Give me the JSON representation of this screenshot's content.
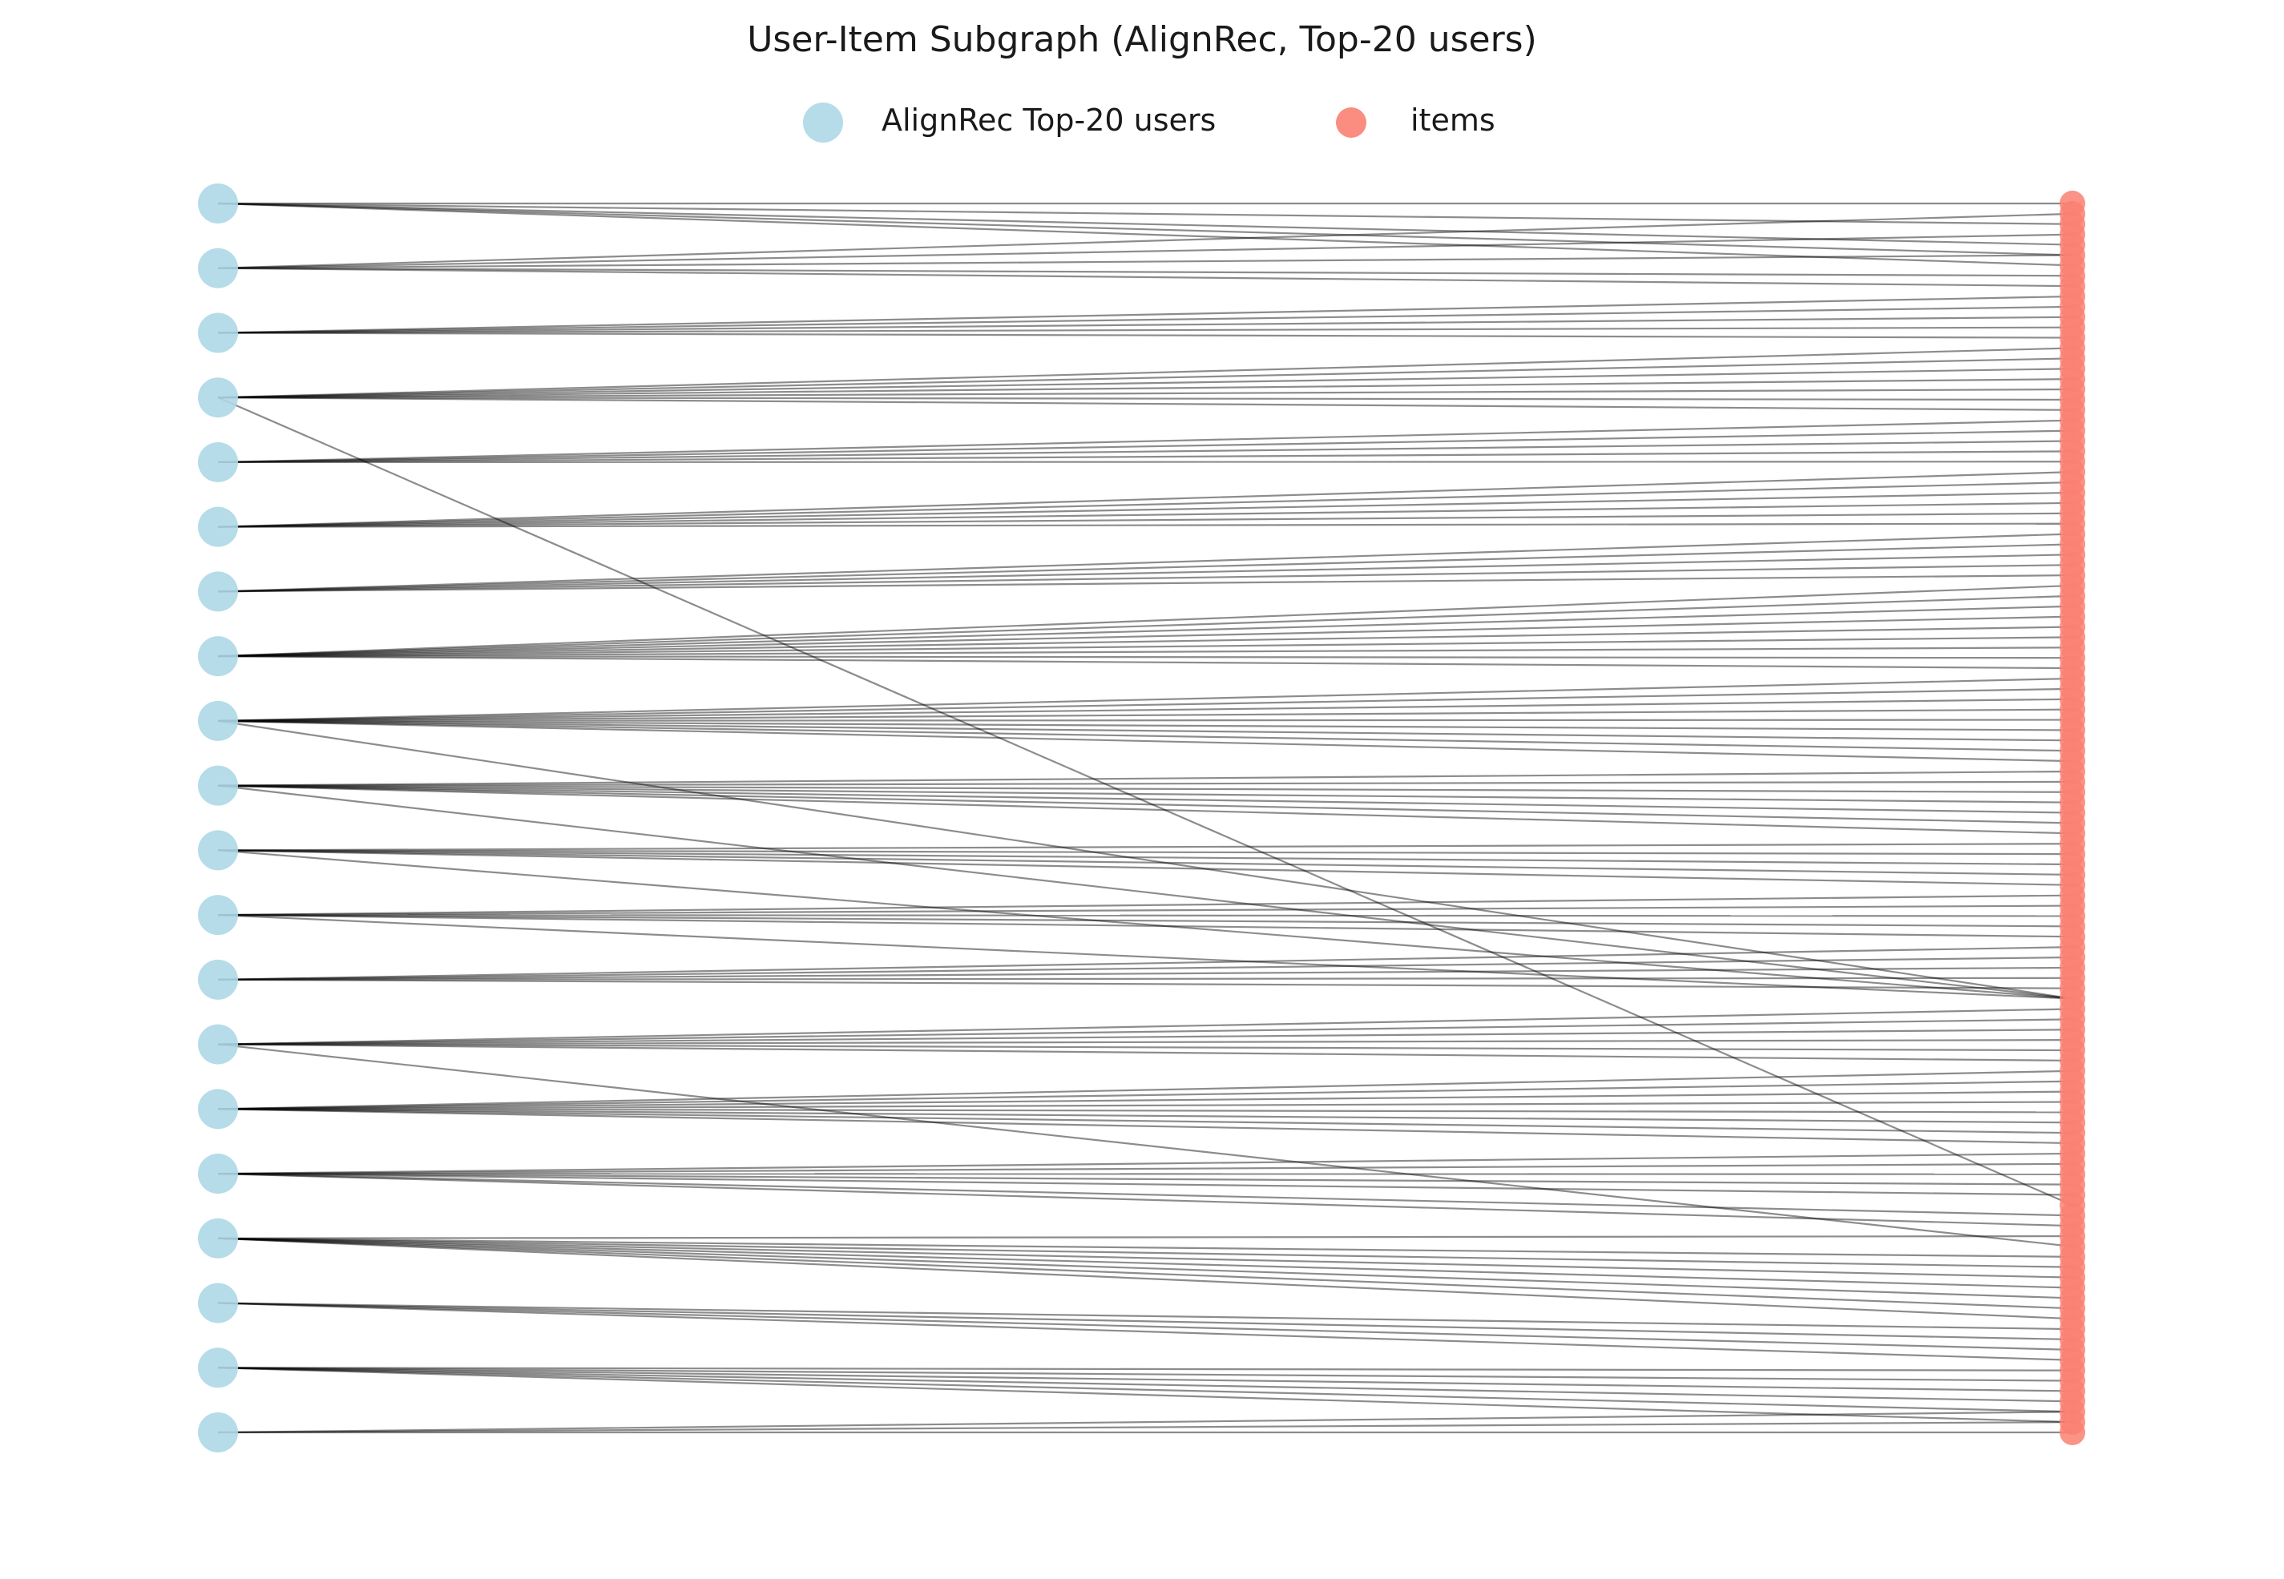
{
  "title": "User-Item Subgraph (AlignRec, Top-20 users)",
  "legend": [
    {
      "label": "AlignRec Top-20 users",
      "color": "#add8e6"
    },
    {
      "label": "items",
      "color": "#fa8072"
    }
  ],
  "graph": {
    "layout": "bipartite",
    "user_count": 20,
    "item_count": 120,
    "user_color": "#add8e6",
    "item_color": "#fa8072",
    "edge_color": "#000000",
    "edges": [
      [
        0,
        0
      ],
      [
        0,
        2
      ],
      [
        0,
        4
      ],
      [
        0,
        6
      ],
      [
        0,
        5
      ],
      [
        1,
        1
      ],
      [
        1,
        3
      ],
      [
        1,
        5
      ],
      [
        1,
        7
      ],
      [
        1,
        8
      ],
      [
        2,
        9
      ],
      [
        2,
        10
      ],
      [
        2,
        11
      ],
      [
        2,
        12
      ],
      [
        2,
        13
      ],
      [
        3,
        14
      ],
      [
        3,
        15
      ],
      [
        3,
        16
      ],
      [
        3,
        17
      ],
      [
        3,
        18
      ],
      [
        3,
        19
      ],
      [
        3,
        20
      ],
      [
        3,
        97
      ],
      [
        4,
        21
      ],
      [
        4,
        22
      ],
      [
        4,
        23
      ],
      [
        4,
        24
      ],
      [
        4,
        25
      ],
      [
        5,
        26
      ],
      [
        5,
        27
      ],
      [
        5,
        28
      ],
      [
        5,
        29
      ],
      [
        5,
        30
      ],
      [
        5,
        31
      ],
      [
        6,
        32
      ],
      [
        6,
        33
      ],
      [
        6,
        34
      ],
      [
        6,
        35
      ],
      [
        6,
        36
      ],
      [
        7,
        37
      ],
      [
        7,
        38
      ],
      [
        7,
        39
      ],
      [
        7,
        40
      ],
      [
        7,
        41
      ],
      [
        7,
        42
      ],
      [
        7,
        43
      ],
      [
        7,
        44
      ],
      [
        7,
        45
      ],
      [
        8,
        46
      ],
      [
        8,
        47
      ],
      [
        8,
        48
      ],
      [
        8,
        49
      ],
      [
        8,
        50
      ],
      [
        8,
        51
      ],
      [
        8,
        52
      ],
      [
        8,
        53
      ],
      [
        8,
        54
      ],
      [
        8,
        77
      ],
      [
        9,
        55
      ],
      [
        9,
        56
      ],
      [
        9,
        57
      ],
      [
        9,
        58
      ],
      [
        9,
        59
      ],
      [
        9,
        60
      ],
      [
        9,
        61
      ],
      [
        9,
        77
      ],
      [
        10,
        62
      ],
      [
        10,
        63
      ],
      [
        10,
        64
      ],
      [
        10,
        65
      ],
      [
        10,
        66
      ],
      [
        10,
        77
      ],
      [
        11,
        67
      ],
      [
        11,
        68
      ],
      [
        11,
        69
      ],
      [
        11,
        70
      ],
      [
        11,
        71
      ],
      [
        11,
        77
      ],
      [
        12,
        72
      ],
      [
        12,
        73
      ],
      [
        12,
        74
      ],
      [
        12,
        75
      ],
      [
        12,
        76
      ],
      [
        13,
        78
      ],
      [
        13,
        79
      ],
      [
        13,
        80
      ],
      [
        13,
        81
      ],
      [
        13,
        82
      ],
      [
        13,
        83
      ],
      [
        13,
        101
      ],
      [
        14,
        84
      ],
      [
        14,
        85
      ],
      [
        14,
        86
      ],
      [
        14,
        87
      ],
      [
        14,
        88
      ],
      [
        14,
        89
      ],
      [
        14,
        90
      ],
      [
        14,
        91
      ],
      [
        15,
        92
      ],
      [
        15,
        93
      ],
      [
        15,
        94
      ],
      [
        15,
        95
      ],
      [
        15,
        96
      ],
      [
        15,
        98
      ],
      [
        15,
        99
      ],
      [
        16,
        100
      ],
      [
        16,
        102
      ],
      [
        16,
        103
      ],
      [
        16,
        104
      ],
      [
        16,
        105
      ],
      [
        16,
        106
      ],
      [
        16,
        107
      ],
      [
        16,
        108
      ],
      [
        17,
        109
      ],
      [
        17,
        110
      ],
      [
        17,
        111
      ],
      [
        17,
        112
      ],
      [
        18,
        113
      ],
      [
        18,
        114
      ],
      [
        18,
        115
      ],
      [
        18,
        116
      ],
      [
        18,
        117
      ],
      [
        18,
        118
      ],
      [
        19,
        117
      ],
      [
        19,
        118
      ],
      [
        19,
        119
      ]
    ]
  }
}
